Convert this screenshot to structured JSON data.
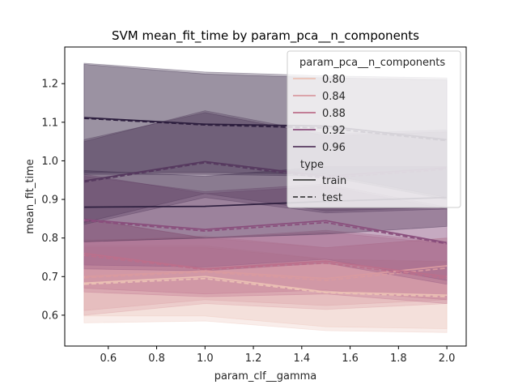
{
  "chart_data": {
    "type": "line",
    "title": "SVM mean_fit_time by param_pca__n_components",
    "xlabel": "param_clf__gamma",
    "ylabel": "mean_fit_time",
    "xlim": [
      0.42,
      2.08
    ],
    "ylim": [
      0.52,
      1.295
    ],
    "x_ticks": [
      0.6,
      0.8,
      1.0,
      1.2,
      1.4,
      1.6,
      1.8,
      2.0
    ],
    "x_tick_labels": [
      "0.6",
      "0.8",
      "1.0",
      "1.2",
      "1.4",
      "1.6",
      "1.8",
      "2.0"
    ],
    "y_ticks": [
      0.6,
      0.7,
      0.8,
      0.9,
      1.0,
      1.1,
      1.2
    ],
    "y_tick_labels": [
      "0.6",
      "0.7",
      "0.8",
      "0.9",
      "1.0",
      "1.1",
      "1.2"
    ],
    "x": [
      0.5,
      1.0,
      1.5,
      2.0
    ],
    "grid": false,
    "legend": {
      "placement": "top-right",
      "hue_title": "param_pca__n_components",
      "style_title": "type",
      "style_entries": [
        {
          "label": "train",
          "dash": "solid"
        },
        {
          "label": "test",
          "dash": "dashed"
        }
      ]
    },
    "series": [
      {
        "name": "0.80",
        "type": "train",
        "color": "#ebc0b4",
        "values": [
          0.683,
          0.7,
          0.66,
          0.652
        ],
        "lower": [
          0.598,
          0.598,
          0.57,
          0.565
        ],
        "upper": [
          0.78,
          0.78,
          0.745,
          0.74
        ]
      },
      {
        "name": "0.80",
        "type": "test",
        "color": "#ebc0b4",
        "values": [
          0.68,
          0.695,
          0.658,
          0.648
        ],
        "lower": [
          0.58,
          0.585,
          0.56,
          0.555
        ],
        "upper": [
          0.775,
          0.775,
          0.745,
          0.738
        ]
      },
      {
        "name": "0.84",
        "type": "train",
        "color": "#d99aa0",
        "values": [
          0.7,
          0.715,
          0.695,
          0.728
        ],
        "lower": [
          0.612,
          0.64,
          0.625,
          0.64
        ],
        "upper": [
          0.79,
          0.805,
          0.775,
          0.8
        ]
      },
      {
        "name": "0.84",
        "type": "test",
        "color": "#d99aa0",
        "values": [
          0.697,
          0.712,
          0.69,
          0.722
        ],
        "lower": [
          0.6,
          0.63,
          0.615,
          0.63
        ],
        "upper": [
          0.795,
          0.8,
          0.775,
          0.8
        ]
      },
      {
        "name": "0.88",
        "type": "train",
        "color": "#bc6f8b",
        "values": [
          0.76,
          0.72,
          0.74,
          0.7
        ],
        "lower": [
          0.67,
          0.655,
          0.665,
          0.64
        ],
        "upper": [
          0.85,
          0.8,
          0.82,
          0.79
        ]
      },
      {
        "name": "0.88",
        "type": "test",
        "color": "#bc6f8b",
        "values": [
          0.755,
          0.718,
          0.735,
          0.695
        ],
        "lower": [
          0.66,
          0.648,
          0.655,
          0.63
        ],
        "upper": [
          0.85,
          0.8,
          0.815,
          0.785
        ]
      },
      {
        "name": "0.92",
        "type": "train",
        "color": "#894e7c",
        "values": [
          0.848,
          0.822,
          0.845,
          0.788
        ],
        "lower": [
          0.73,
          0.725,
          0.745,
          0.69
        ],
        "upper": [
          0.96,
          0.92,
          0.94,
          0.88
        ]
      },
      {
        "name": "0.92",
        "type": "test",
        "color": "#894e7c",
        "values": [
          0.845,
          0.818,
          0.84,
          0.785
        ],
        "lower": [
          0.72,
          0.715,
          0.735,
          0.68
        ],
        "upper": [
          0.965,
          0.915,
          0.935,
          0.875
        ]
      },
      {
        "name": "0.96",
        "type": "train",
        "color": "#56395f",
        "values": [
          0.948,
          0.998,
          0.96,
          0.982
        ],
        "lower": [
          0.84,
          0.915,
          0.87,
          0.88
        ],
        "upper": [
          1.05,
          1.13,
          1.07,
          1.08
        ]
      },
      {
        "name": "0.96",
        "type": "test",
        "color": "#56395f",
        "values": [
          0.945,
          0.995,
          0.955,
          0.978
        ],
        "lower": [
          0.835,
          0.905,
          0.865,
          0.875
        ],
        "upper": [
          1.055,
          1.125,
          1.065,
          1.075
        ]
      },
      {
        "name": "0.96",
        "type": "train",
        "color": "#2d1e3e",
        "values": [
          1.112,
          1.095,
          1.09,
          1.055
        ],
        "lower": [
          0.97,
          0.97,
          0.965,
          0.905
        ],
        "upper": [
          1.253,
          1.23,
          1.22,
          1.215
        ]
      },
      {
        "name": "0.96",
        "type": "test",
        "color": "#2d1e3e",
        "values": [
          1.11,
          1.093,
          1.085,
          1.052
        ],
        "lower": [
          0.965,
          0.965,
          0.96,
          0.9
        ],
        "upper": [
          1.25,
          1.225,
          1.215,
          1.21
        ]
      },
      {
        "name": "0.96",
        "type": "train",
        "color": "#2d1e3e",
        "values": [
          0.88,
          0.882,
          0.895,
          0.905
        ],
        "lower": [
          0.79,
          0.8,
          0.81,
          0.83
        ],
        "upper": [
          0.975,
          0.96,
          0.985,
          0.985
        ]
      }
    ],
    "legend_entries": [
      {
        "label": "0.80",
        "color": "#ebc0b4"
      },
      {
        "label": "0.84",
        "color": "#d99aa0"
      },
      {
        "label": "0.88",
        "color": "#bc6f8b"
      },
      {
        "label": "0.92",
        "color": "#894e7c"
      },
      {
        "label": "0.96",
        "color": "#56395f"
      }
    ]
  }
}
